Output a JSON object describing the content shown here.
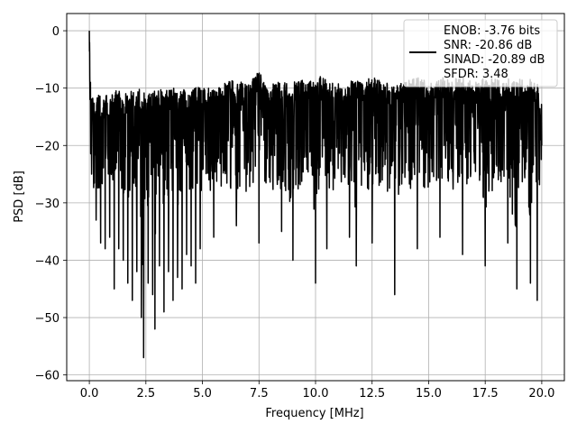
{
  "chart_data": {
    "type": "line",
    "xlabel": "Frequency [MHz]",
    "ylabel": "PSD [dB]",
    "xlim": [
      -1.0,
      21.0
    ],
    "ylim": [
      -61.0,
      3.0
    ],
    "xticks": [
      0.0,
      2.5,
      5.0,
      7.5,
      10.0,
      12.5,
      15.0,
      17.5,
      20.0
    ],
    "xtick_labels": [
      "0.0",
      "2.5",
      "5.0",
      "7.5",
      "10.0",
      "12.5",
      "15.0",
      "17.5",
      "20.0"
    ],
    "yticks": [
      0,
      -10,
      -20,
      -30,
      -40,
      -50,
      -60
    ],
    "ytick_labels": [
      "0",
      "−10",
      "−20",
      "−30",
      "−40",
      "−50",
      "−60"
    ],
    "grid": true,
    "legend_position": "top-right",
    "legend": {
      "lines": [
        "ENOB: -3.76 bits",
        "SNR: -20.86 dB",
        "SINAD: -20.89 dB",
        "SFDR: 3.48"
      ]
    },
    "series": [
      {
        "color": "#000000",
        "x": [
          0.0,
          0.01,
          0.02,
          0.03,
          0.05,
          0.08,
          0.1,
          0.2,
          0.3,
          0.4,
          0.5,
          0.6,
          0.7,
          0.8,
          0.9,
          1.0,
          1.1,
          1.2,
          1.3,
          1.4,
          1.5,
          1.6,
          1.7,
          1.8,
          1.9,
          2.0,
          2.1,
          2.2,
          2.3,
          2.4,
          2.5,
          2.6,
          2.7,
          2.8,
          2.9,
          3.0,
          3.1,
          3.2,
          3.3,
          3.4,
          3.5,
          3.6,
          3.7,
          3.8,
          3.9,
          4.0,
          4.1,
          4.2,
          4.3,
          4.4,
          4.5,
          4.6,
          4.7,
          4.8,
          4.9,
          5.0,
          5.5,
          6.0,
          6.5,
          7.0,
          7.5,
          8.0,
          8.5,
          9.0,
          9.5,
          10.0,
          10.3,
          10.5,
          11.0,
          11.5,
          11.8,
          12.0,
          12.5,
          13.0,
          13.5,
          14.0,
          14.5,
          15.0,
          15.5,
          16.0,
          16.5,
          17.0,
          17.5,
          18.0,
          18.5,
          18.9,
          19.0,
          19.5,
          19.8,
          20.0
        ],
        "y": [
          0.0,
          -2.0,
          -8.0,
          -12.0,
          -9.0,
          -15.0,
          -25.0,
          -18.0,
          -33.0,
          -22.0,
          -37.0,
          -19.0,
          -38.0,
          -20.0,
          -36.0,
          -21.0,
          -45.0,
          -23.0,
          -38.0,
          -19.0,
          -40.0,
          -22.0,
          -44.0,
          -21.0,
          -47.0,
          -24.0,
          -42.0,
          -20.0,
          -50.0,
          -57.0,
          -22.0,
          -44.0,
          -19.0,
          -46.0,
          -52.0,
          -23.0,
          -41.0,
          -20.0,
          -49.0,
          -21.0,
          -42.0,
          -24.0,
          -47.0,
          -19.0,
          -43.0,
          -22.0,
          -45.0,
          -20.0,
          -39.0,
          -23.0,
          -41.0,
          -21.0,
          -44.0,
          -19.0,
          -38.0,
          -22.0,
          -36.0,
          -24.0,
          -34.0,
          -21.0,
          -37.0,
          -22.0,
          -35.0,
          -40.0,
          -21.0,
          -44.0,
          -22.0,
          -38.0,
          -24.0,
          -36.0,
          -41.0,
          -22.0,
          -37.0,
          -21.0,
          -46.0,
          -23.0,
          -38.0,
          -22.0,
          -36.0,
          -24.0,
          -39.0,
          -21.0,
          -41.0,
          -22.0,
          -37.0,
          -45.0,
          -23.0,
          -44.0,
          -47.0,
          -20.0
        ],
        "y_upper": [
          0.0,
          -2.0,
          -5.0,
          -9.0,
          -8.0,
          -10.0,
          -10.0,
          -11.0,
          -11.0,
          -11.0,
          -11.0,
          -12.0,
          -11.0,
          -11.0,
          -12.0,
          -11.0,
          -11.0,
          -10.0,
          -10.0,
          -11.0,
          -12.0,
          -11.0,
          -10.0,
          -10.0,
          -11.0,
          -10.0,
          -9.0,
          -10.0,
          -11.0,
          -11.0,
          -10.0,
          -10.0,
          -11.0,
          -10.0,
          -10.0,
          -10.0,
          -9.5,
          -9.5,
          -10.0,
          -10.0,
          -10.0,
          -10.0,
          -10.0,
          -10.0,
          -9.5,
          -10.0,
          -10.0,
          -9.5,
          -10.0,
          -10.0,
          -9.5,
          -10.0,
          -9.5,
          -10.0,
          -9.0,
          -10.0,
          -10.0,
          -9.0,
          -8.5,
          -9.5,
          -7.0,
          -9.0,
          -9.0,
          -9.0,
          -8.5,
          -9.0,
          -7.5,
          -9.0,
          -9.0,
          -9.0,
          -7.5,
          -9.0,
          -8.0,
          -9.0,
          -9.0,
          -8.0,
          -8.0,
          -9.0,
          -8.0,
          -8.5,
          -8.0,
          -9.0,
          -8.0,
          -8.5,
          -8.0,
          -9.0,
          -8.5,
          -8.0,
          -9.0,
          -13.0
        ]
      }
    ]
  }
}
